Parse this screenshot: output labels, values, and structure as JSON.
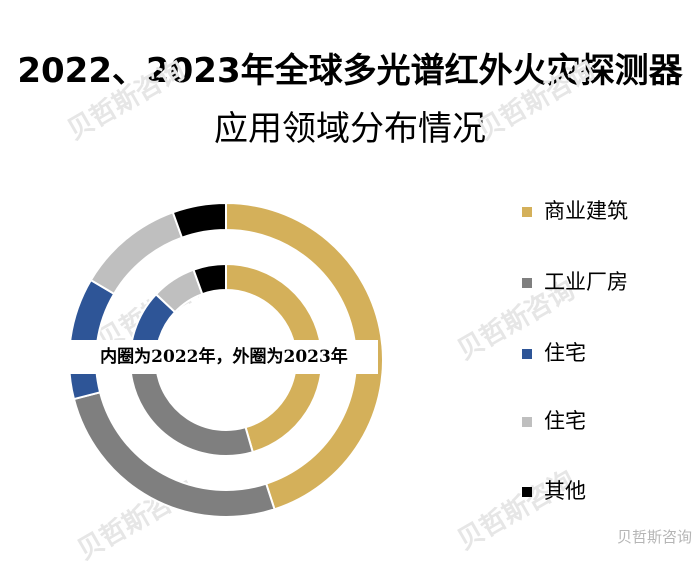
{
  "title_line1": "2022、2023年全球多光谱红外火灾探测器",
  "title_line2": "应用领域分布情况",
  "center_note": "内圈为2022年，外圈为2023年",
  "watermark_text": "贝哲斯咨询",
  "source_text": "贝哲斯咨询",
  "legend": [
    {
      "label": "商业建筑",
      "color": "#D4B05A"
    },
    {
      "label": "工业厂房",
      "color": "#7F7F7F"
    },
    {
      "label": "住宅",
      "color": "#2E5597"
    },
    {
      "label": "住宅",
      "color": "#BFBFBF"
    },
    {
      "label": "其他",
      "color": "#000000"
    }
  ],
  "chart_data": {
    "type": "donut",
    "title": "2022、2023年全球多光谱红外火灾探测器应用领域分布情况",
    "annotation": "内圈为2022年，外圈为2023年",
    "legend_position": "right",
    "categories": [
      "商业建筑",
      "工业厂房",
      "住宅",
      "住宅",
      "其他"
    ],
    "colors": [
      "#D4B05A",
      "#7F7F7F",
      "#2E5597",
      "#BFBFBF",
      "#000000"
    ],
    "series": [
      {
        "name": "2022",
        "ring": "inner",
        "values": [
          45.5,
          27.5,
          14.0,
          7.5,
          5.5
        ]
      },
      {
        "name": "2023",
        "ring": "outer",
        "values": [
          45.0,
          26.0,
          12.5,
          11.0,
          5.5
        ]
      }
    ]
  }
}
